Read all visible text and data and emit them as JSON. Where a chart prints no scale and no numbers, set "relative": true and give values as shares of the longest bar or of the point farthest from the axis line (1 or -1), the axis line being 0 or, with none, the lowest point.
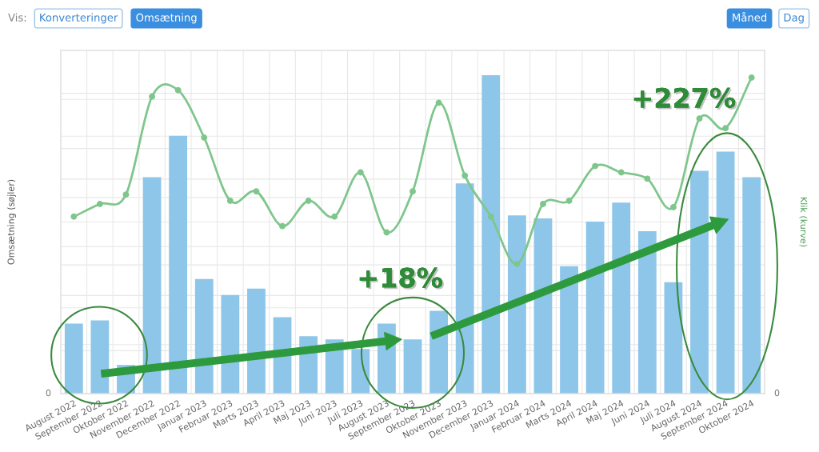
{
  "chart_data": [
    {
      "type": "other",
      "annotations": [
        "Vis:",
        "Konverteringer",
        "Omsætning",
        "Måned",
        "Dag"
      ]
    },
    {
      "type": "bar",
      "relative": true,
      "categories": [
        "August 2022",
        "September 2022",
        "Oktober 2022",
        "November 2022",
        "December 2022",
        "Januar 2023",
        "Februar 2023",
        "Marts 2023",
        "April 2023",
        "Maj 2023",
        "Juni 2023",
        "Juli 2023",
        "August 2023",
        "September 2023",
        "Oktober 2023",
        "November 2023",
        "December 2023",
        "Januar 2024",
        "Februar 2024",
        "Marts 2024",
        "April 2024",
        "Maj 2024",
        "Juni 2024",
        "Juli 2024",
        "August 2024",
        "September 2024",
        "Oktober 2024"
      ],
      "series": [
        {
          "color": "#8ec6ea",
          "values": [
            0.22,
            0.23,
            0.09,
            0.68,
            0.81,
            0.36,
            0.31,
            0.33,
            0.24,
            0.18,
            0.17,
            0.14,
            0.22,
            0.17,
            0.26,
            0.66,
            1,
            0.56,
            0.55,
            0.4,
            0.54,
            0.6,
            0.51,
            0.35,
            0.7,
            0.76,
            0.68
          ]
        },
        {
          "type": "line",
          "axis": "y2",
          "color": "#7fc68c",
          "marker": "circle",
          "line_style": "solid",
          "values": [
            0.56,
            0.6,
            0.63,
            0.94,
            0.96,
            0.81,
            0.61,
            0.64,
            0.53,
            0.61,
            0.56,
            0.7,
            0.51,
            0.64,
            0.92,
            0.69,
            0.56,
            0.41,
            0.6,
            0.61,
            0.72,
            0.7,
            0.68,
            0.59,
            0.87,
            0.84,
            1
          ]
        }
      ],
      "ylabel": "Omsætning (søjler)",
      "y2label": "Klik (kurve)",
      "grid": true,
      "annotations": [
        "0",
        "0",
        "+18%",
        "+227%"
      ]
    }
  ]
}
